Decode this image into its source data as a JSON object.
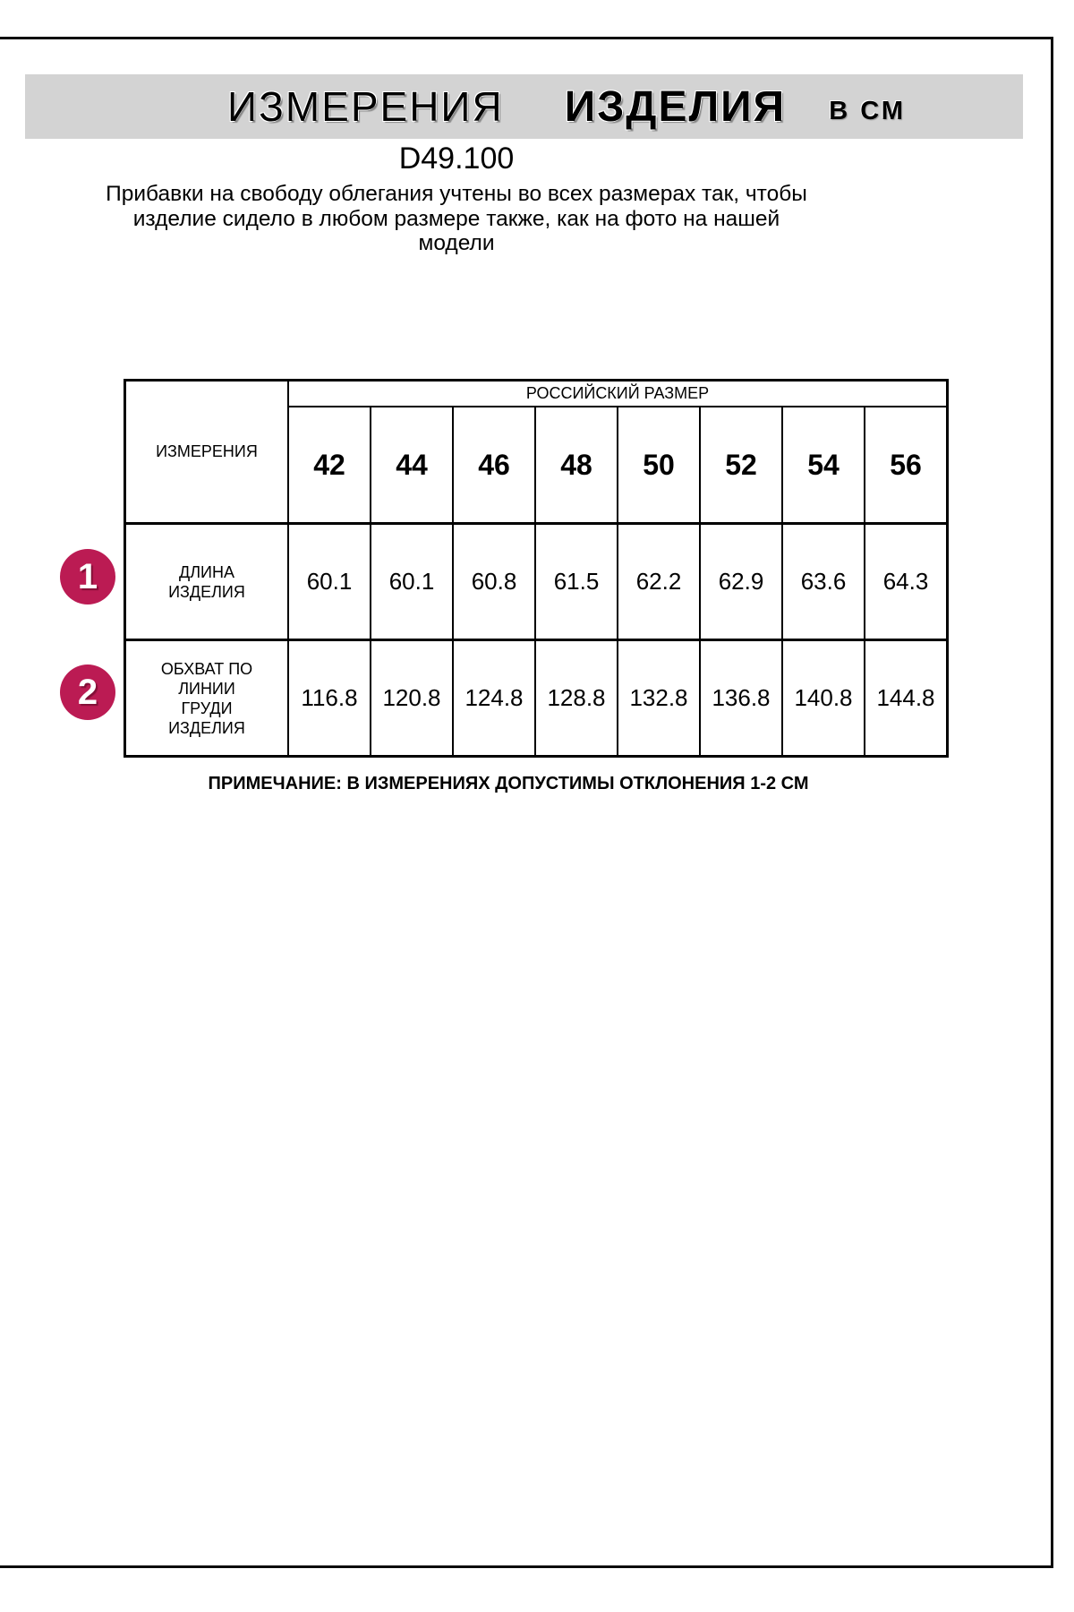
{
  "header": {
    "title_word1": "ИЗМЕРЕНИЯ",
    "title_word2": "ИЗДЕЛИЯ",
    "title_unit": "В СМ"
  },
  "model_code": "D49.100",
  "description": {
    "line1": "Прибавки на свободу облегания учтены во всех размерах так, чтобы",
    "line2": "изделие сидело в любом размере также, как на фото на нашей",
    "line3": "модели"
  },
  "table": {
    "group_header": "РОССИЙСКИЙ РАЗМЕР",
    "measurements_header": "ИЗМЕРЕНИЯ",
    "sizes": [
      "42",
      "44",
      "46",
      "48",
      "50",
      "52",
      "54",
      "56"
    ],
    "rows": [
      {
        "num": "1",
        "label": "ДЛИНА ИЗДЕЛИЯ",
        "values": [
          "60.1",
          "60.1",
          "60.8",
          "61.5",
          "62.2",
          "62.9",
          "63.6",
          "64.3"
        ]
      },
      {
        "num": "2",
        "label": "ОБХВАТ ПО ЛИНИИ ГРУДИ ИЗДЕЛИЯ",
        "values": [
          "116.8",
          "120.8",
          "124.8",
          "128.8",
          "132.8",
          "136.8",
          "140.8",
          "144.8"
        ]
      }
    ]
  },
  "note": "ПРИМЕЧАНИЕ: В ИЗМЕРЕНИЯХ ДОПУСТИМЫ ОТКЛОНЕНИЯ 1-2 СМ",
  "colors": {
    "accent": "#bb1b53",
    "header_bg": "#d3d3d3"
  }
}
